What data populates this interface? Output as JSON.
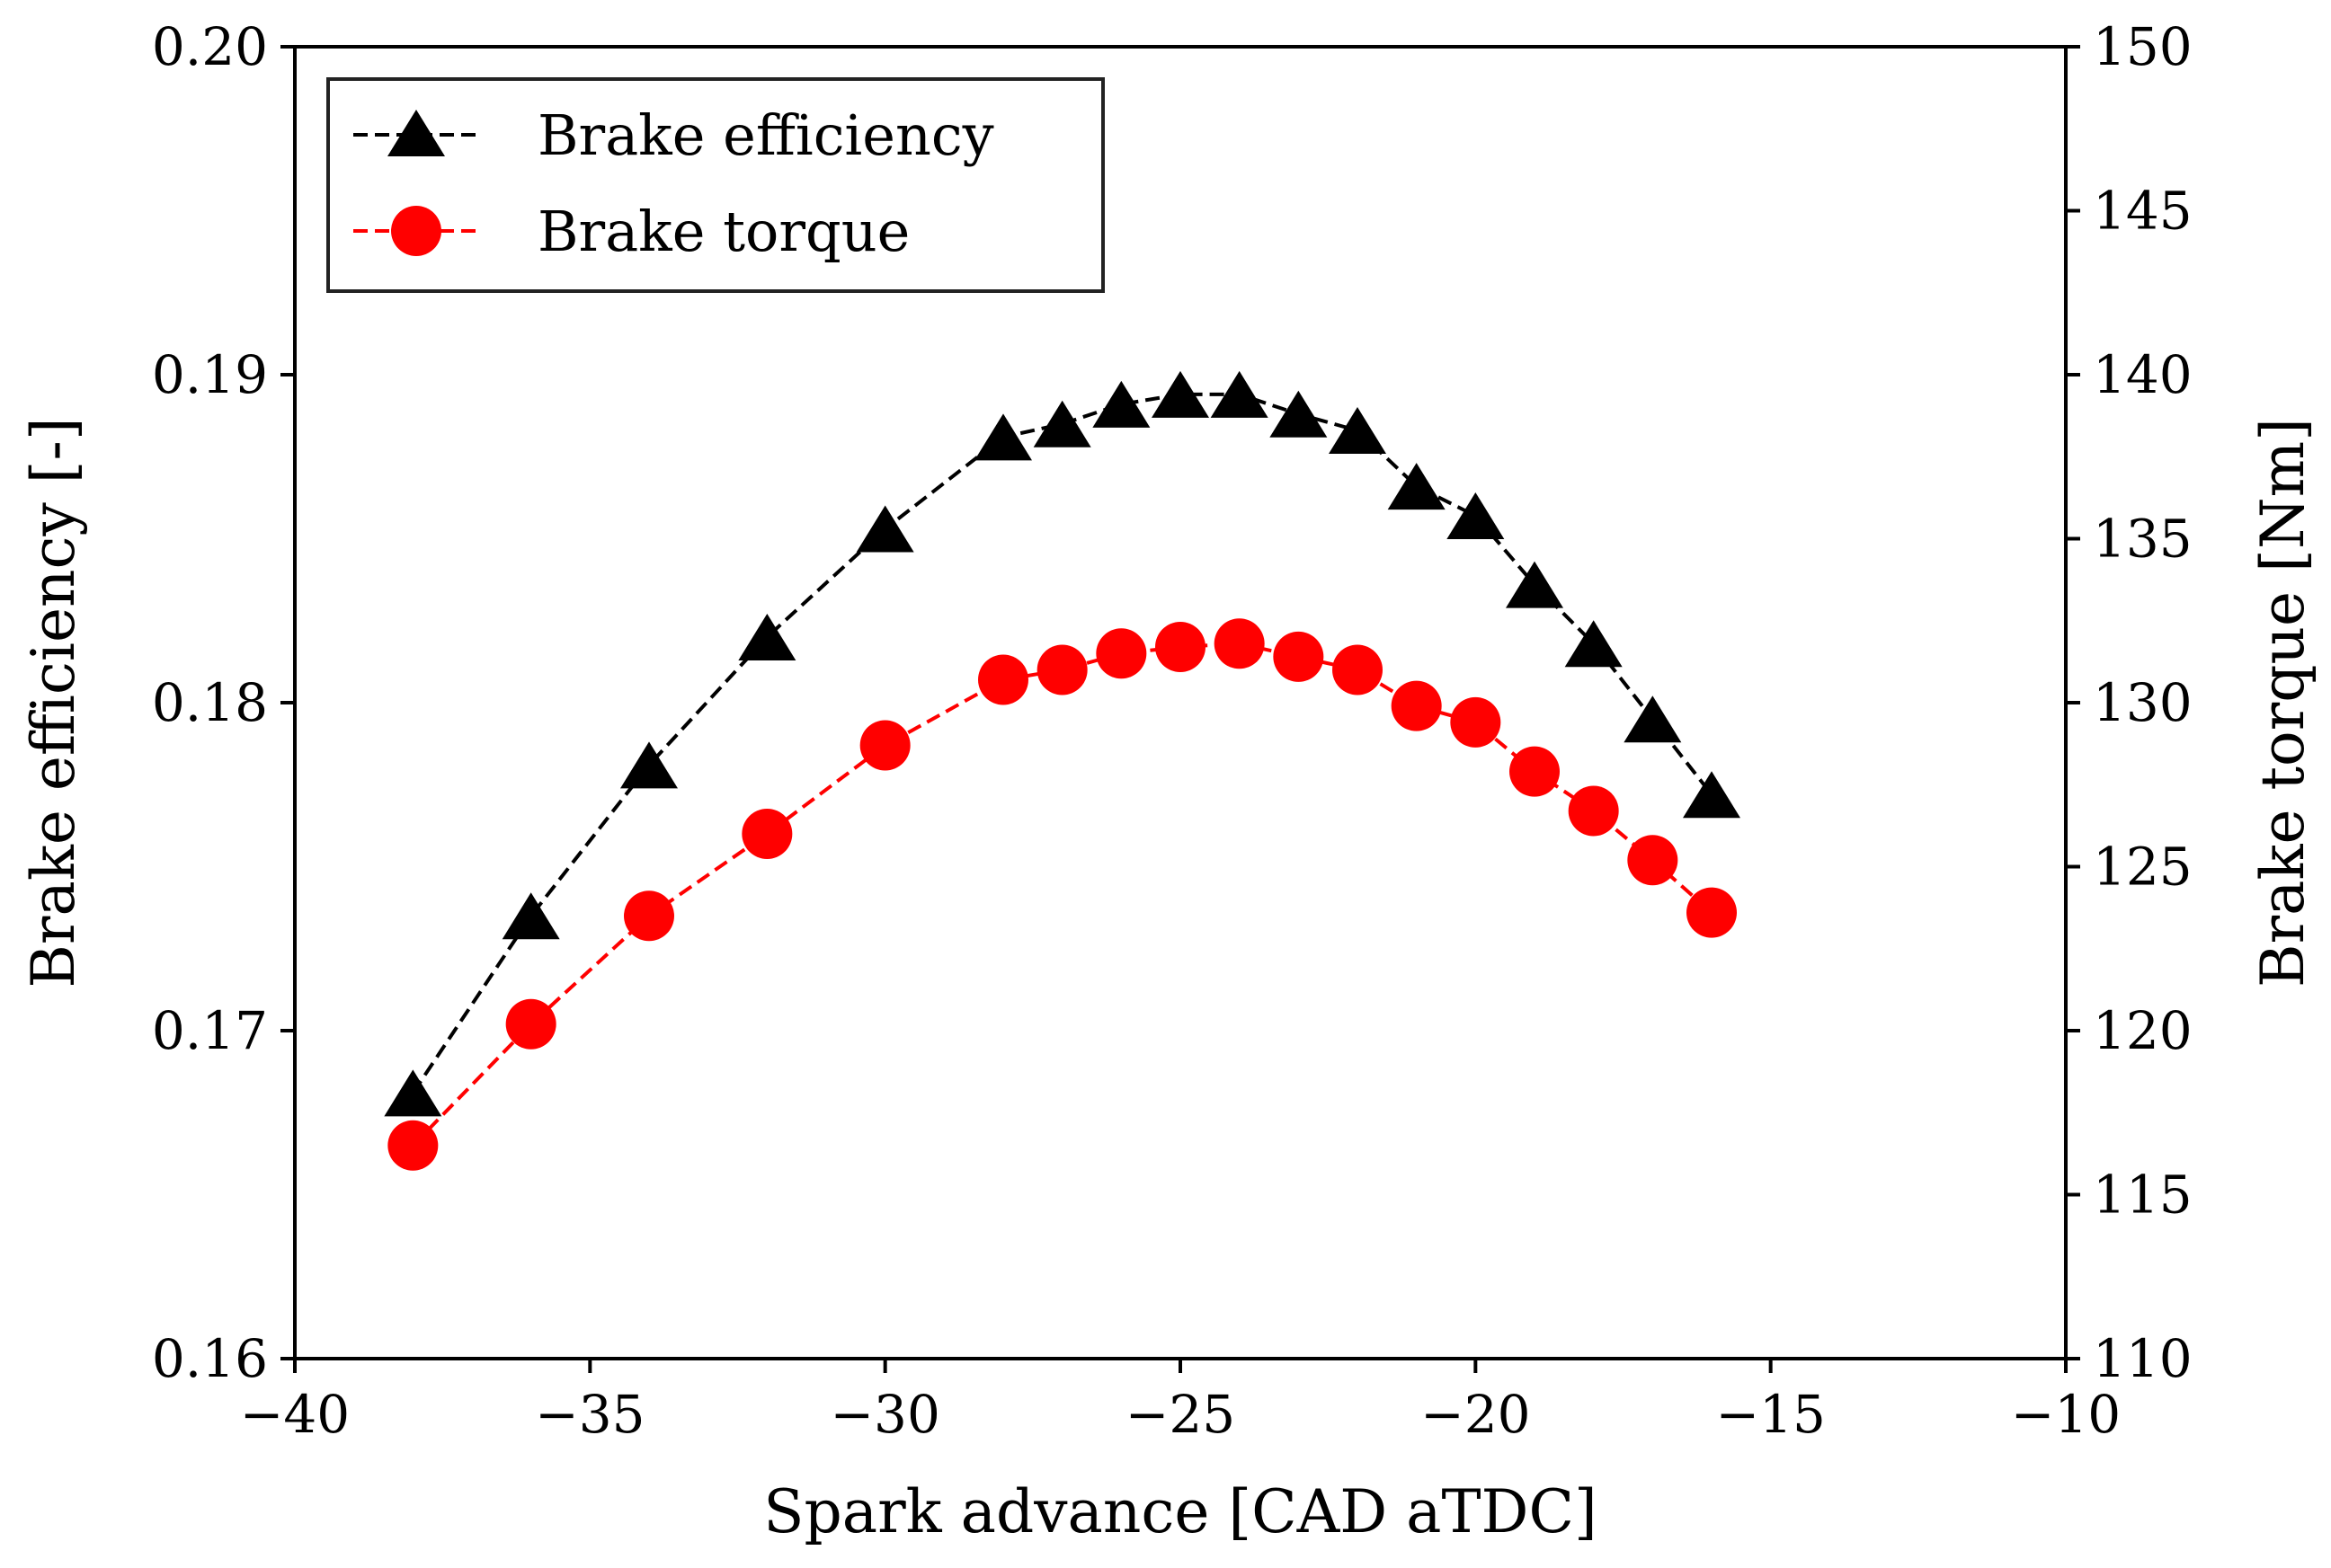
{
  "chart_data": {
    "type": "line",
    "title": "",
    "xlabel": "Spark advance [CAD aTDC]",
    "ylabel_left": "Brake efficiency [-]",
    "ylabel_right": "Brake torque [Nm]",
    "xlim": [
      -40,
      -10
    ],
    "ylim_left": [
      0.16,
      0.2
    ],
    "ylim_right": [
      110,
      150
    ],
    "x_ticks": [
      -40,
      -35,
      -30,
      -25,
      -20,
      -15,
      -10
    ],
    "x_tick_labels": [
      "−40",
      "−35",
      "−30",
      "−25",
      "−20",
      "−15",
      "−10"
    ],
    "y_left_ticks": [
      0.16,
      0.17,
      0.18,
      0.19,
      0.2
    ],
    "y_left_tick_labels": [
      "0.16",
      "0.17",
      "0.18",
      "0.19",
      "0.20"
    ],
    "y_right_ticks": [
      110,
      115,
      120,
      125,
      130,
      135,
      140,
      145,
      150
    ],
    "y_right_tick_labels": [
      "110",
      "115",
      "120",
      "125",
      "130",
      "135",
      "140",
      "145",
      "150"
    ],
    "grid": false,
    "legend_position": "top-left",
    "x": [
      -38,
      -36,
      -34,
      -32,
      -30,
      -28,
      -27,
      -26,
      -25,
      -24,
      -23,
      -22,
      -21,
      -20,
      -19,
      -18,
      -17,
      -16
    ],
    "series": [
      {
        "name": "Brake efficiency",
        "axis": "left",
        "color": "#000000",
        "marker": "triangle",
        "linestyle": "dashed",
        "values": [
          0.1681,
          0.1735,
          0.1781,
          0.182,
          0.1853,
          0.1881,
          0.1885,
          0.1891,
          0.1894,
          0.1894,
          0.1888,
          0.1883,
          0.1866,
          0.1857,
          0.1836,
          0.1818,
          0.1795,
          0.1772
        ]
      },
      {
        "name": "Brake torque",
        "axis": "right",
        "color": "#ff0000",
        "marker": "circle",
        "linestyle": "dashed",
        "values": [
          116.5,
          120.2,
          123.5,
          126.0,
          128.7,
          130.7,
          131.0,
          131.5,
          131.7,
          131.8,
          131.4,
          131.0,
          129.9,
          129.4,
          127.9,
          126.7,
          125.2,
          123.6
        ]
      }
    ]
  }
}
